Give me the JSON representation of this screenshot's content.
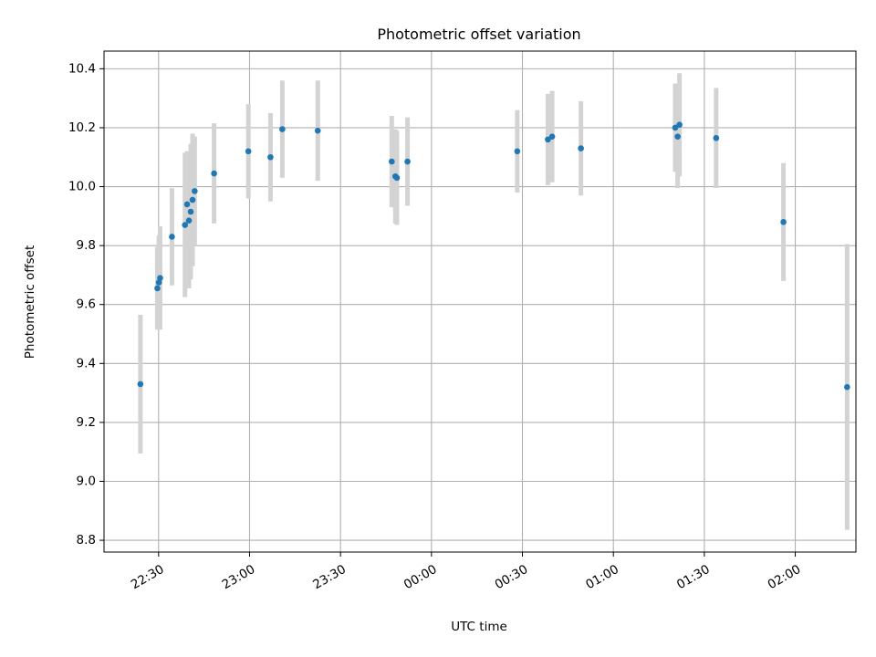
{
  "chart_data": {
    "type": "scatter",
    "title": "Photometric offset variation",
    "xlabel": "UTC time",
    "ylabel": "Photometric offset",
    "grid": true,
    "xlim": [
      "22:12",
      "02:20"
    ],
    "ylim": [
      8.76,
      10.46
    ],
    "x_ticks": [
      "22:30",
      "23:00",
      "23:30",
      "00:00",
      "00:30",
      "01:00",
      "01:30",
      "02:00"
    ],
    "y_ticks": [
      "8.8",
      "9.0",
      "9.2",
      "9.4",
      "9.6",
      "9.8",
      "10.0",
      "10.2",
      "10.4"
    ],
    "point_color": "#1f77b4",
    "errorbar_color": "#d3d3d3",
    "points": [
      {
        "t": "22:24",
        "y": 9.33,
        "err": 0.235
      },
      {
        "t": "22:29.6",
        "y": 9.655,
        "err": 0.14
      },
      {
        "t": "22:30.1",
        "y": 9.675,
        "err": 0.16
      },
      {
        "t": "22:30.5",
        "y": 9.69,
        "err": 0.175
      },
      {
        "t": "22:34.4",
        "y": 9.83,
        "err": 0.165
      },
      {
        "t": "22:38.7",
        "y": 9.87,
        "err": 0.245
      },
      {
        "t": "22:39.4",
        "y": 9.94,
        "err": 0.18
      },
      {
        "t": "22:40",
        "y": 9.885,
        "err": 0.23
      },
      {
        "t": "22:40.6",
        "y": 9.915,
        "err": 0.23
      },
      {
        "t": "22:41.2",
        "y": 9.955,
        "err": 0.225
      },
      {
        "t": "22:41.9",
        "y": 9.985,
        "err": 0.185
      },
      {
        "t": "22:48.3",
        "y": 10.045,
        "err": 0.17
      },
      {
        "t": "22:59.6",
        "y": 10.12,
        "err": 0.16
      },
      {
        "t": "23:06.9",
        "y": 10.1,
        "err": 0.15
      },
      {
        "t": "23:10.8",
        "y": 10.195,
        "err": 0.165
      },
      {
        "t": "23:22.5",
        "y": 10.19,
        "err": 0.17
      },
      {
        "t": "23:46.9",
        "y": 10.085,
        "err": 0.155
      },
      {
        "t": "23:48.1",
        "y": 10.035,
        "err": 0.16
      },
      {
        "t": "23:48.6",
        "y": 10.03,
        "err": 0.16
      },
      {
        "t": "23:52.1",
        "y": 10.085,
        "err": 0.15
      },
      {
        "t": "00:28.3",
        "y": 10.12,
        "err": 0.14
      },
      {
        "t": "00:38.4",
        "y": 10.16,
        "err": 0.155
      },
      {
        "t": "00:39.8",
        "y": 10.17,
        "err": 0.155
      },
      {
        "t": "00:49.3",
        "y": 10.13,
        "err": 0.16
      },
      {
        "t": "01:20.4",
        "y": 10.2,
        "err": 0.15
      },
      {
        "t": "01:21.2",
        "y": 10.17,
        "err": 0.175
      },
      {
        "t": "01:21.8",
        "y": 10.21,
        "err": 0.175
      },
      {
        "t": "01:33.9",
        "y": 10.165,
        "err": 0.17
      },
      {
        "t": "01:56.1",
        "y": 9.88,
        "err": 0.2
      },
      {
        "t": "02:17.1",
        "y": 9.32,
        "err": 0.485
      }
    ]
  }
}
